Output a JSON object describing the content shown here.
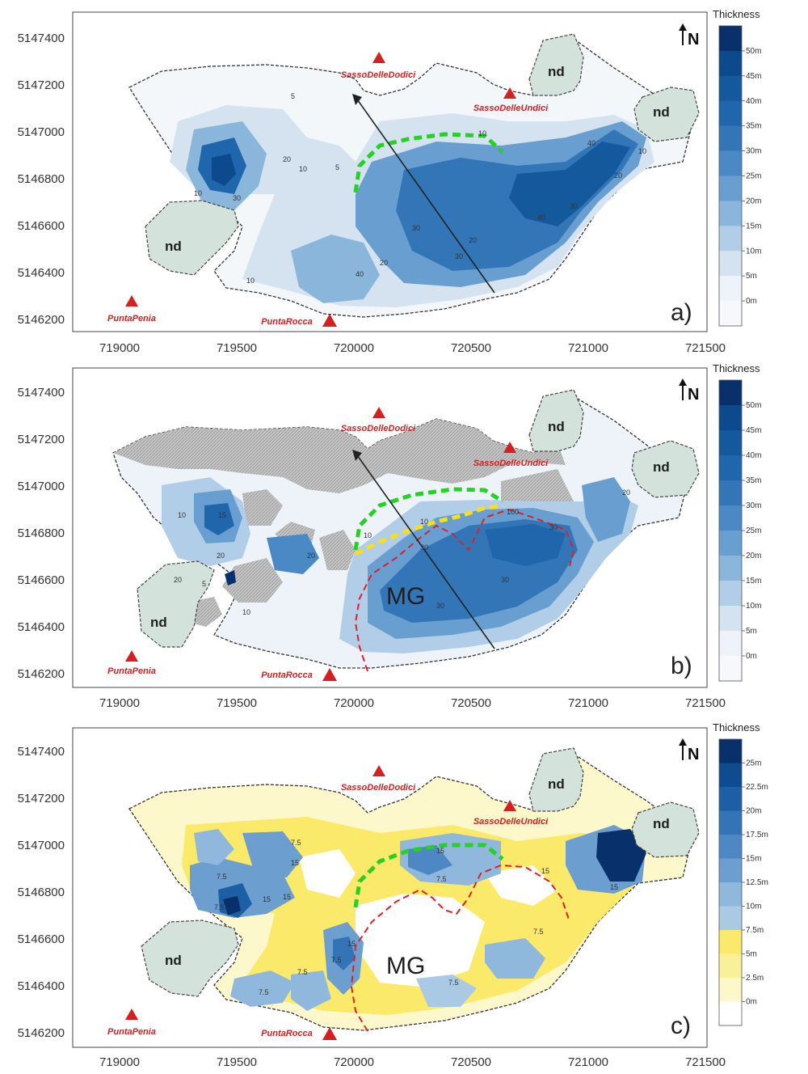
{
  "panels": [
    {
      "letter": "a)",
      "y_ticks": [
        "5147400",
        "5147200",
        "5147000",
        "5146800",
        "5146600",
        "5146400",
        "5146200"
      ],
      "x_ticks": [
        "719000",
        "719500",
        "720000",
        "720500",
        "721000",
        "721500"
      ],
      "north": "N",
      "peaks": [
        "SassoDelleDodici",
        "SassoDelleUndici",
        "PuntaPenia",
        "PuntaRocca"
      ],
      "nd_labels": [
        "nd",
        "nd",
        "nd"
      ],
      "legend": {
        "title": "Thickness",
        "labels": [
          "50m",
          "45m",
          "40m",
          "35m",
          "30m",
          "25m",
          "20m",
          "15m",
          "10m",
          "5m",
          "0m"
        ],
        "colors": [
          "#08306b",
          "#0c4a8d",
          "#14599c",
          "#2066ad",
          "#3276b8",
          "#4a89c5",
          "#689fd0",
          "#8bb6dc",
          "#b1cde7",
          "#d5e3f1",
          "#eef3f9",
          "#f6f8fb"
        ]
      },
      "contour_labels": [
        "5",
        "10",
        "20",
        "10",
        "5",
        "10",
        "30",
        "10",
        "20",
        "30",
        "40",
        "20",
        "30",
        "40",
        "30",
        "40",
        "20",
        "10"
      ]
    },
    {
      "letter": "b)",
      "y_ticks": [
        "5147400",
        "5147200",
        "5147000",
        "5146800",
        "5146600",
        "5146400",
        "5146200"
      ],
      "x_ticks": [
        "719000",
        "719500",
        "720000",
        "720500",
        "721000",
        "721500"
      ],
      "north": "N",
      "peaks": [
        "SassoDelleDodici",
        "SassoDelleUndici",
        "PuntaPenia",
        "PuntaRocca"
      ],
      "nd_labels": [
        "nd",
        "nd",
        "nd"
      ],
      "mg": "MG",
      "legend": {
        "title": "Thickness",
        "labels": [
          "50m",
          "45m",
          "40m",
          "35m",
          "30m",
          "25m",
          "20m",
          "15m",
          "10m",
          "5m",
          "0m"
        ],
        "colors": [
          "#08306b",
          "#0c4a8d",
          "#14599c",
          "#2066ad",
          "#3276b8",
          "#4a89c5",
          "#689fd0",
          "#8bb6dc",
          "#b1cde7",
          "#d5e3f1",
          "#eef3f9",
          "#f6f8fb"
        ]
      },
      "contour_labels": [
        "10",
        "20",
        "15",
        "20",
        "10",
        "5",
        "10",
        "10",
        "20",
        "30",
        "30",
        "30",
        "20",
        "100",
        "30"
      ]
    },
    {
      "letter": "c)",
      "y_ticks": [
        "5147400",
        "5147200",
        "5147000",
        "5146800",
        "5146600",
        "5146400",
        "5146200"
      ],
      "x_ticks": [
        "719000",
        "719500",
        "720000",
        "720500",
        "721000",
        "721500"
      ],
      "north": "N",
      "peaks": [
        "SassoDelleDodici",
        "SassoDelleUndici",
        "PuntaPenia",
        "PuntaRocca"
      ],
      "nd_labels": [
        "nd",
        "nd",
        "nd"
      ],
      "mg": "MG",
      "legend": {
        "title": "Thickness",
        "labels": [
          "25m",
          "22.5m",
          "20m",
          "17.5m",
          "15m",
          "12.5m",
          "10m",
          "7.5m",
          "5m",
          "2.5m",
          "0m"
        ],
        "colors": [
          "#08306b",
          "#0f4b8f",
          "#1d5fa5",
          "#3373b6",
          "#4d88c4",
          "#6c9fd0",
          "#8fb8dc",
          "#a9c9e4",
          "#fbea6a",
          "#fbf09a",
          "#fdf7cc",
          "#ffffff"
        ]
      },
      "contour_labels": [
        "7.5",
        "15",
        "7.5",
        "15",
        "15",
        "7.5",
        "15",
        "7.5",
        "7.5",
        "7.5",
        "7.5",
        "15",
        "7.5",
        "15",
        "7.5",
        "15"
      ]
    }
  ],
  "colors": {
    "nd_fill": "#d3e2da",
    "nd_stroke": "#444444",
    "peak_red": "#d42020",
    "green_dash": "#25d125",
    "yellow_dash": "#f7e01a",
    "red_dash": "#e02020",
    "hatch_gray": "#bdbdbd"
  }
}
